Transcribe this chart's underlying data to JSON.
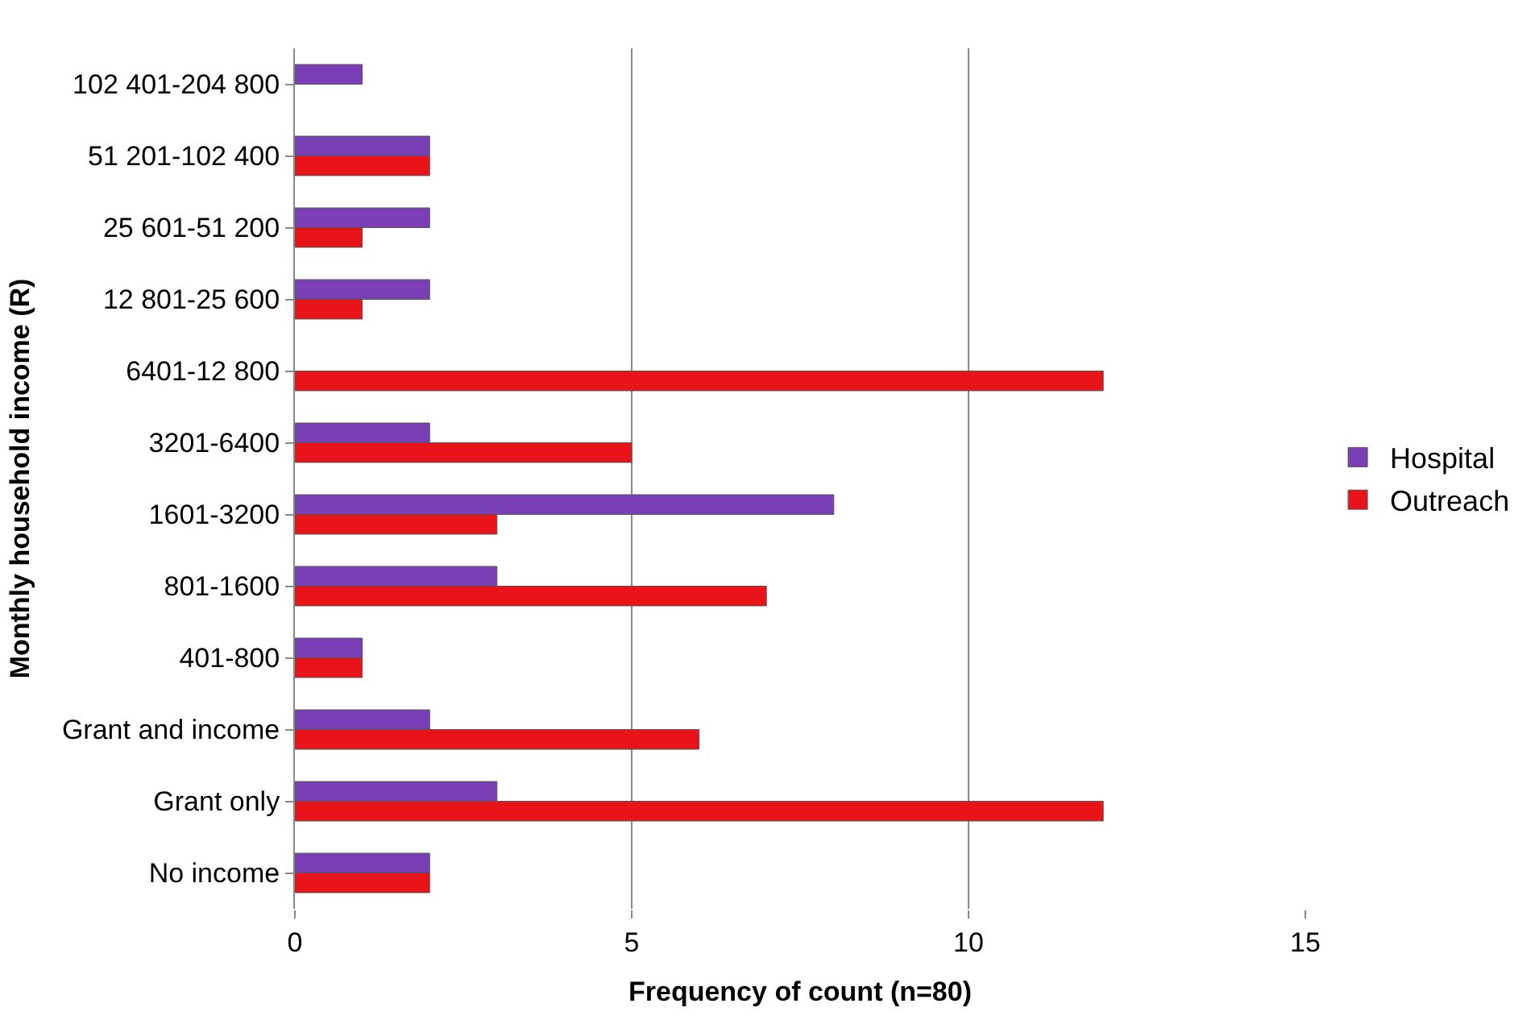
{
  "chart_data": {
    "type": "bar",
    "orientation": "horizontal",
    "xlabel": "Frequency of count (n=80)",
    "ylabel": "Monthly household income (R)",
    "categories": [
      "102 401-204 800",
      "51 201-102 400",
      "25 601-51 200",
      "12 801-25 600",
      "6401-12 800",
      "3201-6400",
      "1601-3200",
      "801-1600",
      "401-800",
      "Grant and income",
      "Grant only",
      "No income"
    ],
    "series": [
      {
        "name": "Hospital",
        "color": "#7b3fb5",
        "values": [
          1,
          2,
          2,
          2,
          null,
          2,
          8,
          3,
          1,
          2,
          3,
          2
        ]
      },
      {
        "name": "Outreach",
        "color": "#e8141a",
        "values": [
          null,
          2,
          1,
          1,
          12,
          5,
          3,
          7,
          1,
          6,
          12,
          2
        ]
      }
    ],
    "xlim": [
      0,
      15
    ],
    "xticks": [
      0,
      5,
      10,
      15
    ],
    "grid": "x",
    "legend": "right"
  }
}
